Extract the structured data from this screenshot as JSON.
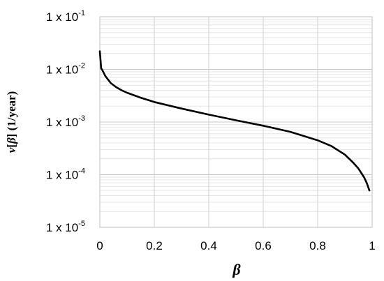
{
  "chart_data": {
    "type": "line",
    "xlabel": "β",
    "ylabel_parts": [
      "ν",
      "[",
      "β",
      "] (1/year)"
    ],
    "xlim": [
      0,
      1
    ],
    "ylim": [
      1e-05,
      0.1
    ],
    "yscale": "log",
    "grid": true,
    "x_ticks": [
      "0",
      "0.2",
      "0.4",
      "0.6",
      "0.8",
      "1"
    ],
    "y_ticks": [
      {
        "value": 0.1,
        "base": "1 x 10",
        "exp": "-1"
      },
      {
        "value": 0.01,
        "base": "1 x 10",
        "exp": "-2"
      },
      {
        "value": 0.001,
        "base": "1 x 10",
        "exp": "-3"
      },
      {
        "value": 0.0001,
        "base": "1 x 10",
        "exp": "-4"
      },
      {
        "value": 1e-05,
        "base": "1 x 10",
        "exp": "-5"
      }
    ],
    "series": [
      {
        "color": "#000000",
        "x": [
          0,
          0.005,
          0.01,
          0.02,
          0.04,
          0.06,
          0.08,
          0.1,
          0.15,
          0.2,
          0.3,
          0.4,
          0.5,
          0.6,
          0.7,
          0.8,
          0.85,
          0.9,
          0.93,
          0.95,
          0.97,
          0.98,
          0.99
        ],
        "y": [
          0.022,
          0.0105,
          0.0095,
          0.0075,
          0.0055,
          0.0046,
          0.004,
          0.0036,
          0.0029,
          0.0024,
          0.0018,
          0.00138,
          0.00108,
          0.00085,
          0.00065,
          0.00045,
          0.00035,
          0.00024,
          0.00017,
          0.00013,
          9e-05,
          7e-05,
          5e-05
        ]
      }
    ]
  }
}
